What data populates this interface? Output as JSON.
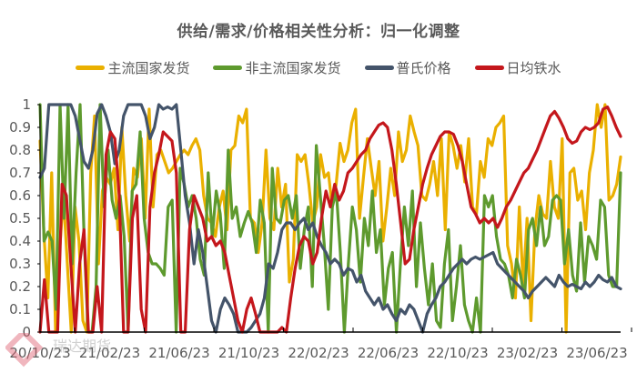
{
  "chart_data": {
    "type": "line",
    "title": "供给/需求/价格相关性分析：归一化调整",
    "xlabel": "",
    "ylabel": "",
    "ylim": [
      0,
      1
    ],
    "yticks": [
      "0",
      "0.1",
      "0.2",
      "0.3",
      "0.4",
      "0.5",
      "0.6",
      "0.7",
      "0.8",
      "0.9",
      "1"
    ],
    "xticks": [
      "20/10/23",
      "21/02/23",
      "21/06/23",
      "21/10/23",
      "22/02/23",
      "22/06/23",
      "22/10/23",
      "23/02/23",
      "23/06/23"
    ],
    "grid": false,
    "legend_position": "top",
    "series": [
      {
        "name": "主流国家发货",
        "color": "#EAB000",
        "values": [
          0.84,
          0.43,
          0.15,
          0.7,
          0.0,
          0.35,
          0.6,
          0.3,
          0.0,
          0.55,
          0.4,
          0.05,
          0.0,
          0.7,
          0.95,
          0.3,
          0.62,
          0.68,
          0.65,
          0.72,
          0.45,
          0.9,
          0.6,
          0.4,
          0.72,
          0.68,
          0.85,
          0.5,
          0.98,
          0.55,
          0.78,
          0.8,
          0.75,
          0.7,
          0.72,
          0.75,
          0.78,
          0.8,
          0.78,
          0.82,
          0.85,
          0.8,
          0.6,
          0.5,
          0.48,
          0.42,
          0.55,
          0.62,
          0.45,
          0.8,
          0.82,
          0.95,
          0.92,
          0.98,
          0.5,
          0.48,
          0.35,
          0.48,
          0.8,
          0.5,
          0.45,
          0.72,
          0.55,
          0.65,
          0.22,
          0.32,
          0.78,
          0.75,
          0.78,
          0.65,
          0.48,
          0.55,
          0.78,
          0.68,
          0.7,
          0.55,
          0.65,
          0.83,
          0.75,
          0.8,
          0.92,
          0.98,
          0.5,
          0.68,
          0.85,
          0.72,
          0.6,
          0.75,
          0.4,
          0.55,
          0.72,
          0.6,
          0.88,
          0.75,
          0.8,
          0.95,
          0.88,
          0.82,
          0.6,
          0.58,
          0.65,
          0.75,
          0.6,
          0.85,
          0.45,
          0.88,
          0.82,
          0.72,
          0.82,
          0.66,
          0.85,
          0.55,
          0.52,
          0.75,
          0.68,
          0.85,
          0.82,
          0.9,
          0.92,
          0.95,
          0.38,
          0.3,
          0.15,
          0.55,
          0.2,
          0.5,
          0.05,
          0.45,
          0.6,
          0.52,
          0.5,
          0.75,
          0.55,
          0.5,
          0.85,
          0.0,
          0.7,
          0.72,
          0.58,
          0.62,
          0.45,
          0.7,
          0.8,
          1.0,
          0.9,
          1.0,
          0.58,
          0.6,
          0.65,
          0.77
        ]
      },
      {
        "name": "非主流国家发货",
        "color": "#5E9A2E",
        "values": [
          1.0,
          0.4,
          0.44,
          0.4,
          0.1,
          1.0,
          0.5,
          1.0,
          0.3,
          0.7,
          1.0,
          0.42,
          0.0,
          0.0,
          0.2,
          1.0,
          0.55,
          0.8,
          0.58,
          0.5,
          0.6,
          0.42,
          0.0,
          0.62,
          0.65,
          0.88,
          0.5,
          0.35,
          0.3,
          0.3,
          0.28,
          0.25,
          0.55,
          0.58,
          0.0,
          0.72,
          0.65,
          0.55,
          0.6,
          0.5,
          0.32,
          0.25,
          0.7,
          0.42,
          0.62,
          0.52,
          0.28,
          0.8,
          0.5,
          0.55,
          0.42,
          0.48,
          0.53,
          0.48,
          0.35,
          0.58,
          0.48,
          0.0,
          0.72,
          0.5,
          0.48,
          0.58,
          0.6,
          0.5,
          0.6,
          0.28,
          0.45,
          0.55,
          0.2,
          0.82,
          0.6,
          0.38,
          0.1,
          0.55,
          0.62,
          0.35,
          0.0,
          0.3,
          0.55,
          0.45,
          0.22,
          0.5,
          0.38,
          0.62,
          0.35,
          0.45,
          0.12,
          0.28,
          0.35,
          0.0,
          0.3,
          0.55,
          0.38,
          0.62,
          0.2,
          0.48,
          0.28,
          0.12,
          0.3,
          0.05,
          0.02,
          0.3,
          0.45,
          0.05,
          0.2,
          0.38,
          0.12,
          0.05,
          0.0,
          0.15,
          0.0,
          0.6,
          0.55,
          0.6,
          0.42,
          0.32,
          0.3,
          0.25,
          0.15,
          0.32,
          0.25,
          0.15,
          0.45,
          0.5,
          0.38,
          0.55,
          0.38,
          0.42,
          0.58,
          0.6,
          0.58,
          0.3,
          0.45,
          0.25,
          0.18,
          0.48,
          0.22,
          0.42,
          0.38,
          0.32,
          0.58,
          0.55,
          0.25,
          0.2,
          0.2,
          0.7
        ]
      },
      {
        "name": "普氏价格",
        "color": "#44546A",
        "values": [
          0.68,
          0.72,
          1.0,
          1.0,
          1.0,
          1.0,
          1.0,
          1.0,
          0.95,
          0.85,
          0.75,
          0.72,
          0.8,
          0.96,
          1.0,
          0.95,
          0.88,
          0.74,
          0.8,
          0.95,
          1.0,
          1.0,
          1.0,
          1.0,
          0.95,
          0.85,
          0.9,
          1.0,
          0.98,
          0.99,
          0.98,
          1.0,
          0.8,
          0.6,
          0.48,
          0.3,
          0.45,
          0.35,
          0.2,
          0.05,
          0.0,
          0.1,
          0.15,
          0.12,
          0.08,
          0.0,
          0.0,
          0.0,
          0.02,
          0.05,
          0.08,
          0.15,
          0.3,
          0.28,
          0.35,
          0.45,
          0.48,
          0.48,
          0.45,
          0.48,
          0.5,
          0.45,
          0.48,
          0.42,
          0.38,
          0.35,
          0.3,
          0.32,
          0.3,
          0.25,
          0.28,
          0.27,
          0.22,
          0.25,
          0.18,
          0.15,
          0.12,
          0.15,
          0.1,
          0.12,
          0.08,
          0.05,
          0.1,
          0.08,
          0.12,
          0.1,
          0.05,
          0.0,
          0.08,
          0.12,
          0.15,
          0.2,
          0.22,
          0.25,
          0.28,
          0.3,
          0.32,
          0.3,
          0.32,
          0.33,
          0.32,
          0.33,
          0.34,
          0.35,
          0.3,
          0.28,
          0.26,
          0.24,
          0.22,
          0.2,
          0.18,
          0.15,
          0.18,
          0.2,
          0.22,
          0.24,
          0.22,
          0.2,
          0.25,
          0.22,
          0.2,
          0.21,
          0.2,
          0.19,
          0.22,
          0.2,
          0.22,
          0.25,
          0.23,
          0.22,
          0.24,
          0.2,
          0.19
        ]
      },
      {
        "name": "日均铁水",
        "color": "#C4171C",
        "values": [
          0.0,
          0.23,
          0.0,
          0.0,
          0.0,
          0.65,
          0.6,
          0.3,
          0.0,
          0.3,
          0.45,
          0.0,
          0.0,
          0.2,
          0.0,
          0.78,
          0.88,
          0.85,
          0.6,
          0.0,
          0.0,
          0.5,
          0.6,
          0.1,
          0.0,
          0.55,
          0.7,
          0.78,
          0.88,
          0.86,
          0.84,
          0.7,
          0.0,
          0.0,
          0.45,
          0.6,
          0.55,
          0.5,
          0.4,
          0.42,
          0.38,
          0.4,
          0.35,
          0.25,
          0.15,
          0.05,
          0.0,
          0.1,
          0.15,
          0.08,
          0.0,
          0.0,
          0.0,
          0.0,
          0.0,
          0.02,
          0.0,
          0.15,
          0.28,
          0.38,
          0.42,
          0.4,
          0.3,
          0.35,
          0.5,
          0.62,
          0.55,
          0.65,
          0.58,
          0.62,
          0.7,
          0.72,
          0.75,
          0.78,
          0.8,
          0.85,
          0.88,
          0.91,
          0.92,
          0.9,
          0.8,
          0.65,
          0.48,
          0.3,
          0.32,
          0.45,
          0.55,
          0.65,
          0.72,
          0.78,
          0.82,
          0.86,
          0.88,
          0.88,
          0.87,
          0.82,
          0.75,
          0.65,
          0.55,
          0.52,
          0.48,
          0.5,
          0.48,
          0.5,
          0.46,
          0.5,
          0.55,
          0.58,
          0.62,
          0.66,
          0.7,
          0.72,
          0.76,
          0.8,
          0.85,
          0.9,
          0.95,
          0.97,
          0.94,
          0.9,
          0.85,
          0.83,
          0.84,
          0.88,
          0.9,
          0.89,
          0.9,
          0.92,
          0.98,
          0.99,
          0.95,
          0.9,
          0.86
        ]
      }
    ]
  },
  "legend": [
    {
      "label": "主流国家发货",
      "color": "#EAB000"
    },
    {
      "label": "非主流国家发货",
      "color": "#5E9A2E"
    },
    {
      "label": "普氏价格",
      "color": "#44546A"
    },
    {
      "label": "日均铁水",
      "color": "#C4171C"
    }
  ],
  "watermark": {
    "text": "瑞达期货",
    "color": "#E06070"
  }
}
